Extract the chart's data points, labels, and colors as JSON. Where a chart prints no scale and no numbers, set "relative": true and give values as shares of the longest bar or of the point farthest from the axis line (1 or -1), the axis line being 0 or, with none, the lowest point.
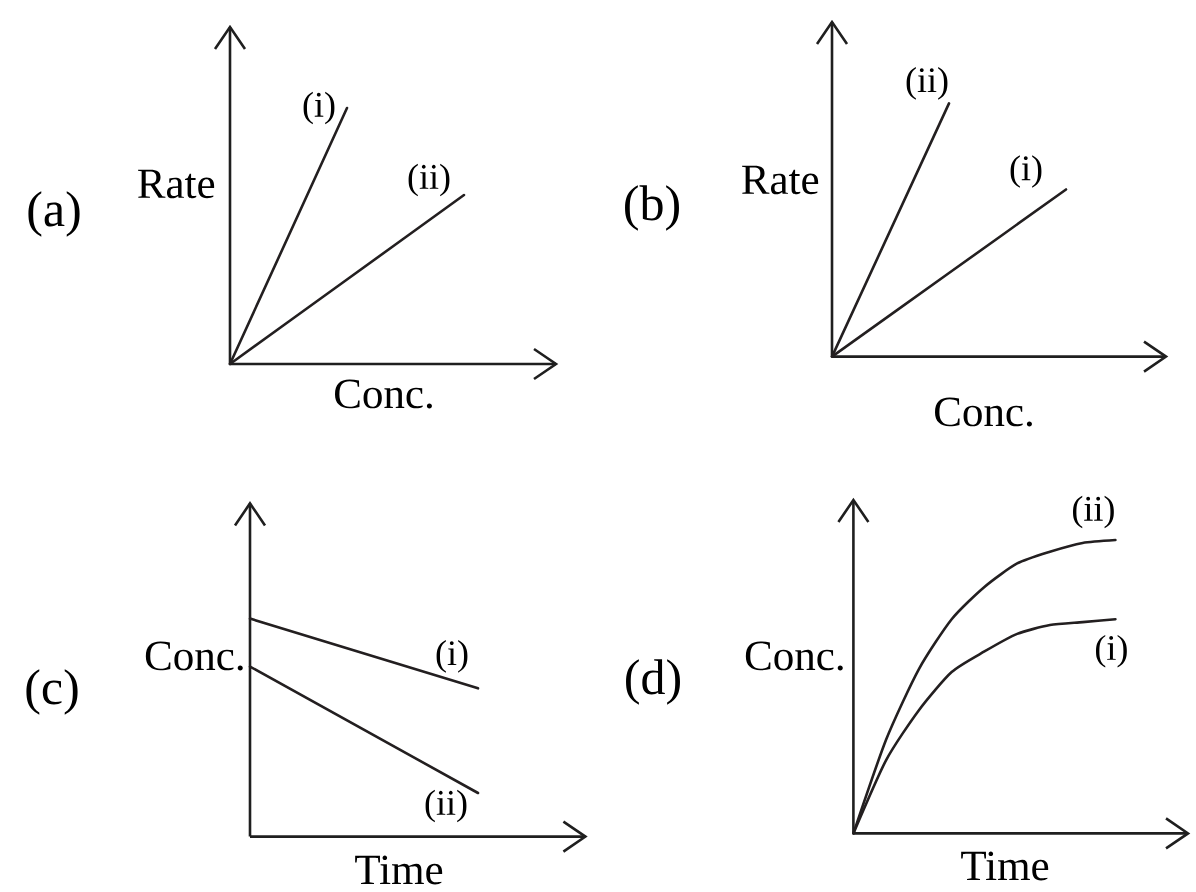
{
  "chart_data": [
    {
      "type": "line",
      "title": "(a)",
      "xlabel": "Conc.",
      "ylabel": "Rate",
      "relative": true,
      "categories": [
        null,
        null,
        null
      ],
      "series": [
        {
          "name": "(i)",
          "color": "#231f20",
          "values": [
            0,
            1,
            null
          ]
        },
        {
          "name": "(ii)",
          "color": "#231f20",
          "values": [
            0,
            0.33,
            0.66
          ]
        }
      ]
    },
    {
      "type": "line",
      "title": "(b)",
      "xlabel": "Conc.",
      "ylabel": "Rate",
      "relative": true,
      "categories": [
        null,
        null,
        null
      ],
      "series": [
        {
          "name": "(i)",
          "color": "#231f20",
          "values": [
            0,
            0.33,
            0.66
          ]
        },
        {
          "name": "(ii)",
          "color": "#231f20",
          "values": [
            0,
            1,
            null
          ]
        }
      ]
    },
    {
      "type": "line",
      "title": "(c)",
      "xlabel": "Time",
      "ylabel": "Conc.",
      "relative": true,
      "categories": [
        null,
        null
      ],
      "series": [
        {
          "name": "(i)",
          "color": "#231f20",
          "values": [
            1,
            0.68
          ]
        },
        {
          "name": "(ii)",
          "color": "#231f20",
          "values": [
            0.78,
            0.2
          ]
        }
      ]
    },
    {
      "type": "line",
      "title": "(d)",
      "xlabel": "Time",
      "ylabel": "Conc.",
      "relative": true,
      "categories": [
        null,
        null,
        null,
        null,
        null,
        null,
        null,
        null,
        null
      ],
      "series": [
        {
          "name": "(i)",
          "color": "#231f20",
          "values": [
            0,
            0.25,
            0.42,
            0.55,
            0.62,
            0.68,
            0.71,
            0.72,
            0.73
          ]
        },
        {
          "name": "(ii)",
          "color": "#231f20",
          "values": [
            0,
            0.32,
            0.56,
            0.73,
            0.84,
            0.92,
            0.96,
            0.99,
            1
          ]
        }
      ]
    }
  ]
}
